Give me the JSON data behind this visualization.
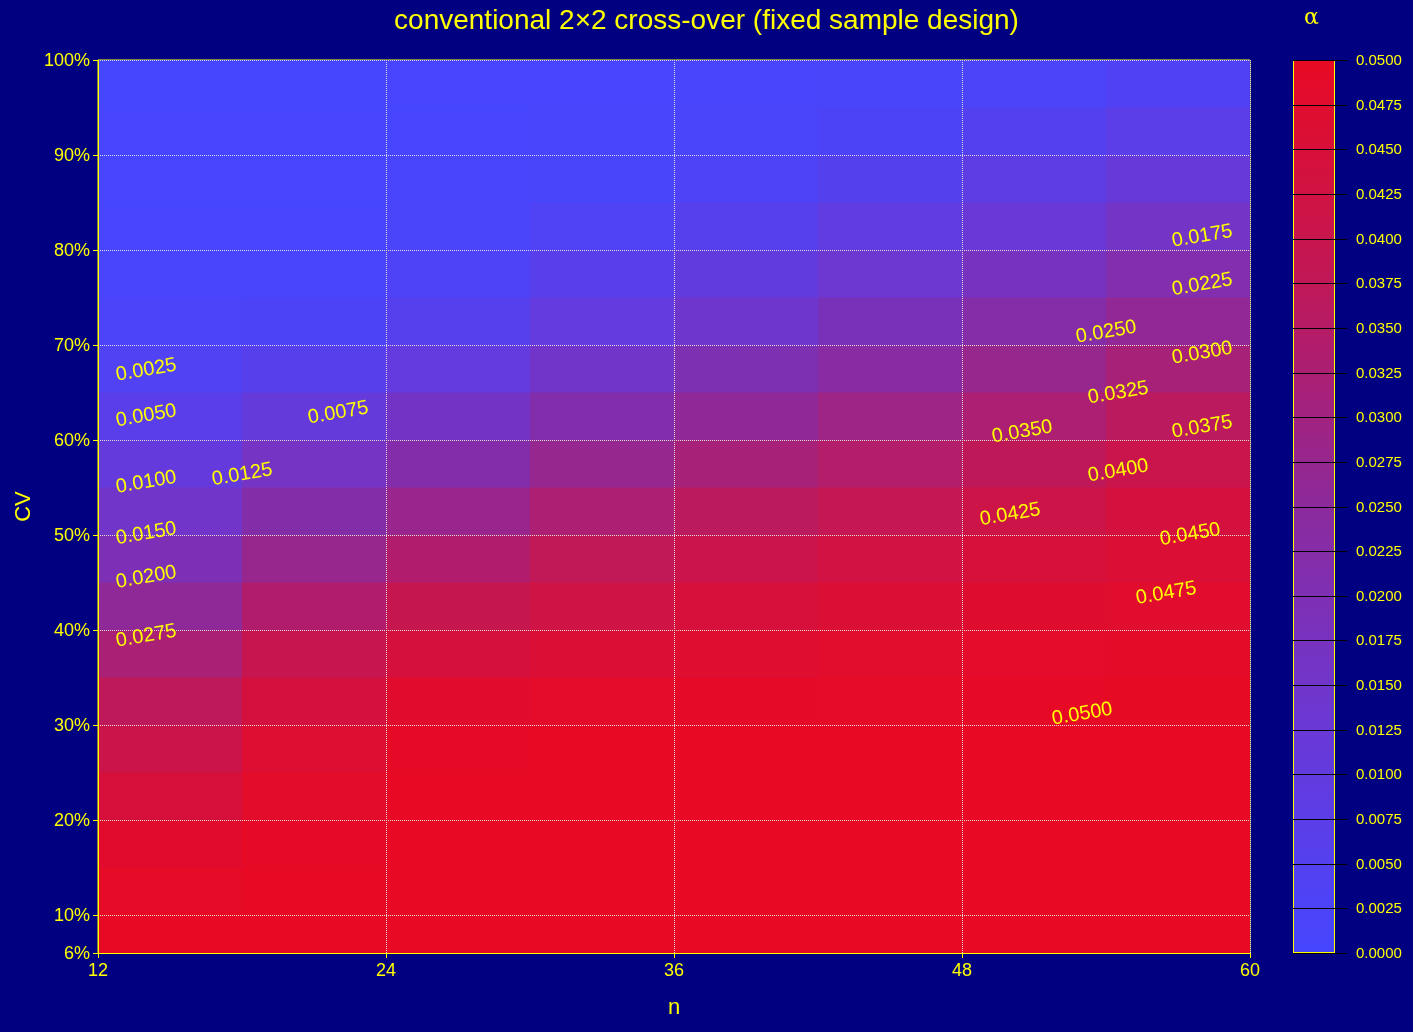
{
  "chart_data": {
    "type": "heatmap",
    "title": "conventional 2×2 cross-over (fixed sample design)",
    "xlabel": "n",
    "ylabel": "CV",
    "clabel": "α",
    "x": [
      15,
      21,
      27,
      33,
      39,
      45,
      51,
      57
    ],
    "y": [
      97.5,
      92.5,
      87.5,
      82.5,
      77.5,
      72.5,
      67.5,
      62.5,
      57.5,
      52.5,
      47.5,
      42.5,
      37.5,
      32.5,
      27.5,
      22.5,
      17.5,
      12.5,
      8
    ],
    "xlim": [
      12,
      60
    ],
    "xticks": [
      12,
      24,
      36,
      48,
      60
    ],
    "ylim": [
      6,
      100
    ],
    "yticks": [
      {
        "value": 6,
        "label": "6%"
      },
      {
        "value": 10,
        "label": "10%"
      },
      {
        "value": 20,
        "label": "20%"
      },
      {
        "value": 30,
        "label": "30%"
      },
      {
        "value": 40,
        "label": "40%"
      },
      {
        "value": 50,
        "label": "50%"
      },
      {
        "value": 60,
        "label": "60%"
      },
      {
        "value": 70,
        "label": "70%"
      },
      {
        "value": 80,
        "label": "80%"
      },
      {
        "value": 90,
        "label": "90%"
      },
      {
        "value": 100,
        "label": "100%"
      }
    ],
    "cells": [
      [
        0.0001,
        0.0001,
        0.0002,
        0.0003,
        0.0006,
        0.0011,
        0.0021,
        0.0035
      ],
      [
        0.0002,
        0.0002,
        0.0003,
        0.0006,
        0.0014,
        0.0026,
        0.0046,
        0.0072
      ],
      [
        0.0003,
        0.0003,
        0.0006,
        0.0012,
        0.0028,
        0.0053,
        0.0082,
        0.0116
      ],
      [
        0.0004,
        0.0005,
        0.0014,
        0.003,
        0.0055,
        0.009,
        0.0126,
        0.0162
      ],
      [
        0.0008,
        0.001,
        0.0028,
        0.0061,
        0.0097,
        0.0136,
        0.0174,
        0.0212
      ],
      [
        0.0018,
        0.0026,
        0.0054,
        0.0102,
        0.0145,
        0.0185,
        0.0225,
        0.0263
      ],
      [
        0.0038,
        0.006,
        0.01,
        0.0153,
        0.02,
        0.0238,
        0.0277,
        0.0315
      ],
      [
        0.0067,
        0.0109,
        0.0159,
        0.0215,
        0.026,
        0.0293,
        0.0328,
        0.0362
      ],
      [
        0.0107,
        0.0164,
        0.022,
        0.0273,
        0.0314,
        0.0343,
        0.0373,
        0.0404
      ],
      [
        0.0151,
        0.0221,
        0.028,
        0.0327,
        0.0363,
        0.0388,
        0.0412,
        0.0437
      ],
      [
        0.0195,
        0.0277,
        0.0339,
        0.0377,
        0.0407,
        0.0427,
        0.0445,
        0.0459
      ],
      [
        0.0258,
        0.0339,
        0.0394,
        0.0423,
        0.0444,
        0.0459,
        0.047,
        0.0476
      ],
      [
        0.0321,
        0.0396,
        0.0443,
        0.046,
        0.0472,
        0.048,
        0.0486,
        0.0489
      ],
      [
        0.0369,
        0.0438,
        0.0478,
        0.0486,
        0.0491,
        0.0494,
        0.0496,
        0.0497
      ],
      [
        0.0409,
        0.0466,
        0.0496,
        0.0499,
        0.05,
        0.05,
        0.05,
        0.05
      ],
      [
        0.0445,
        0.0484,
        0.05,
        0.05,
        0.05,
        0.05,
        0.05,
        0.05
      ],
      [
        0.0478,
        0.0496,
        0.05,
        0.05,
        0.05,
        0.05,
        0.05,
        0.05
      ],
      [
        0.0495,
        0.05,
        0.05,
        0.05,
        0.05,
        0.05,
        0.05,
        0.05
      ],
      [
        0.05,
        0.05,
        0.05,
        0.05,
        0.05,
        0.05,
        0.05,
        0.05
      ]
    ],
    "clim": [
      0,
      0.05
    ],
    "cticks": [
      {
        "value": 0,
        "label": "0.0000"
      },
      {
        "value": 0.0025,
        "label": "0.0025"
      },
      {
        "value": 0.005,
        "label": "0.0050"
      },
      {
        "value": 0.0075,
        "label": "0.0075"
      },
      {
        "value": 0.01,
        "label": "0.0100"
      },
      {
        "value": 0.0125,
        "label": "0.0125"
      },
      {
        "value": 0.015,
        "label": "0.0150"
      },
      {
        "value": 0.0175,
        "label": "0.0175"
      },
      {
        "value": 0.02,
        "label": "0.0200"
      },
      {
        "value": 0.0225,
        "label": "0.0225"
      },
      {
        "value": 0.025,
        "label": "0.0250"
      },
      {
        "value": 0.0275,
        "label": "0.0275"
      },
      {
        "value": 0.03,
        "label": "0.0300"
      },
      {
        "value": 0.0325,
        "label": "0.0325"
      },
      {
        "value": 0.035,
        "label": "0.0350"
      },
      {
        "value": 0.0375,
        "label": "0.0375"
      },
      {
        "value": 0.04,
        "label": "0.0400"
      },
      {
        "value": 0.0425,
        "label": "0.0425"
      },
      {
        "value": 0.045,
        "label": "0.0450"
      },
      {
        "value": 0.0475,
        "label": "0.0475"
      },
      {
        "value": 0.05,
        "label": "0.0500"
      }
    ],
    "grid": true,
    "annotations": [
      "0.0025",
      "0.0050",
      "0.0075",
      "0.0100",
      "0.0125",
      "0.0150",
      "0.0200",
      "0.0275",
      "0.0175",
      "0.0225",
      "0.0250",
      "0.0300",
      "0.0325",
      "0.0350",
      "0.0375",
      "0.0400",
      "0.0425",
      "0.0450",
      "0.0475",
      "0.0500"
    ]
  }
}
